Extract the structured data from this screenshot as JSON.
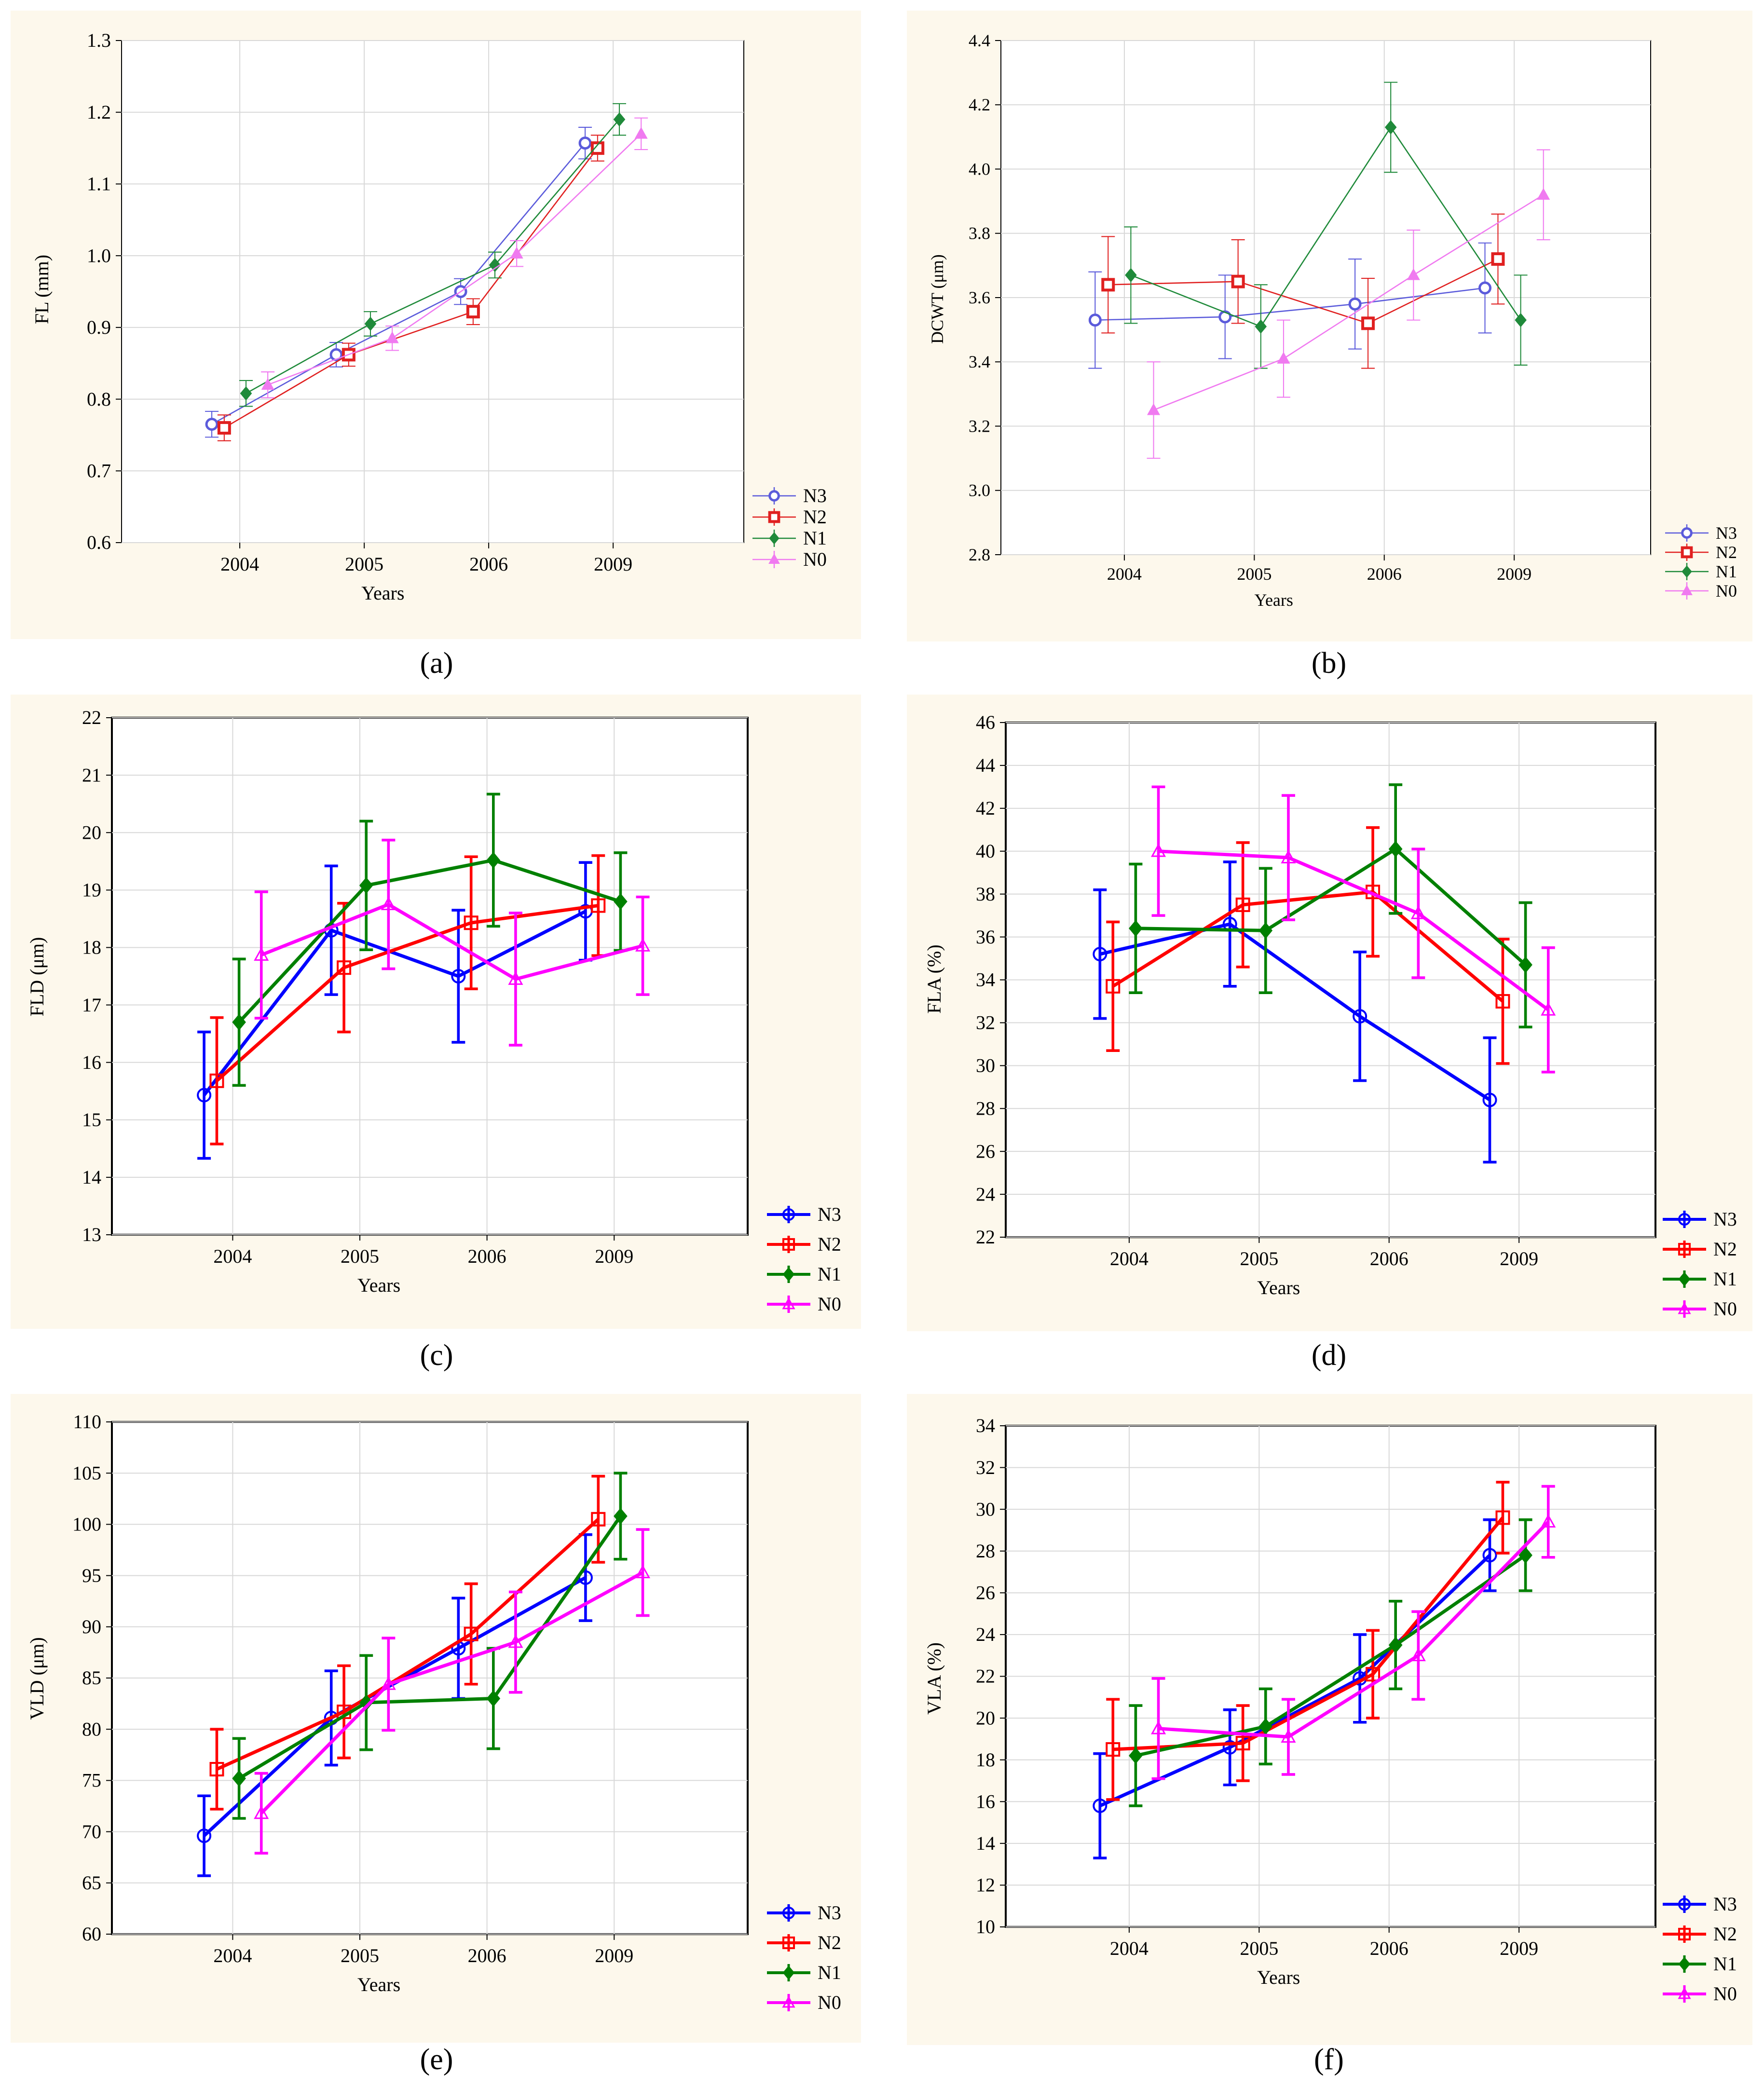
{
  "figure": {
    "x_label_common": "Years",
    "legend_entries": [
      "N3",
      "N2",
      "N1",
      "N0"
    ],
    "colors": {
      "light": {
        "N3": "#5b5bdb",
        "N2": "#e02020",
        "N1": "#1f8a3a",
        "N0": "#f07af0",
        "bg": "#fdf8ec"
      },
      "bold": {
        "N3": "#0000ff",
        "N2": "#ff0000",
        "N1": "#008000",
        "N0": "#ff00ff",
        "bg": "#fdf8ec"
      }
    }
  },
  "chart_data": [
    {
      "id": "a",
      "caption": "(a)",
      "type": "line",
      "title": "",
      "xlabel": "Years",
      "ylabel": "FL (mm)",
      "categories": [
        "2004",
        "2005",
        "2006",
        "2009"
      ],
      "ylim": [
        0.6,
        1.3
      ],
      "yticks": [
        "0.6",
        "0.7",
        "0.8",
        "0.9",
        "1.0",
        "1.1",
        "1.2",
        "1.3"
      ],
      "grid": true,
      "legend": "bottom-right",
      "style": "light",
      "series": [
        {
          "name": "N3",
          "values": [
            0.765,
            0.862,
            0.95,
            1.157
          ],
          "errors": [
            0.018,
            0.017,
            0.018,
            0.022
          ]
        },
        {
          "name": "N2",
          "values": [
            0.76,
            0.862,
            0.922,
            1.15
          ],
          "errors": [
            0.018,
            0.016,
            0.018,
            0.018
          ]
        },
        {
          "name": "N1",
          "values": [
            0.808,
            0.905,
            0.987,
            1.19
          ],
          "errors": [
            0.018,
            0.017,
            0.018,
            0.022
          ]
        },
        {
          "name": "N0",
          "values": [
            0.82,
            0.885,
            1.003,
            1.17
          ],
          "errors": [
            0.018,
            0.017,
            0.018,
            0.022
          ]
        }
      ]
    },
    {
      "id": "b",
      "caption": "(b)",
      "type": "line",
      "title": "",
      "xlabel": "Years",
      "ylabel": "DCWT (μm)",
      "categories": [
        "2004",
        "2005",
        "2006",
        "2009"
      ],
      "ylim": [
        2.8,
        4.4
      ],
      "yticks": [
        "2.8",
        "3.0",
        "3.2",
        "3.4",
        "3.6",
        "3.8",
        "4.0",
        "4.2",
        "4.4"
      ],
      "grid": true,
      "legend": "bottom-right",
      "style": "light",
      "series": [
        {
          "name": "N3",
          "values": [
            3.53,
            3.54,
            3.58,
            3.63
          ],
          "errors": [
            0.15,
            0.13,
            0.14,
            0.14
          ]
        },
        {
          "name": "N2",
          "values": [
            3.64,
            3.65,
            3.52,
            3.72
          ],
          "errors": [
            0.15,
            0.13,
            0.14,
            0.14
          ]
        },
        {
          "name": "N1",
          "values": [
            3.67,
            3.51,
            4.13,
            3.53
          ],
          "errors": [
            0.15,
            0.13,
            0.14,
            0.14
          ]
        },
        {
          "name": "N0",
          "values": [
            3.25,
            3.41,
            3.67,
            3.92
          ],
          "errors": [
            0.15,
            0.12,
            0.14,
            0.14
          ]
        }
      ]
    },
    {
      "id": "c",
      "caption": "(c)",
      "type": "line",
      "title": "",
      "xlabel": "Years",
      "ylabel": "FLD (μm)",
      "categories": [
        "2004",
        "2005",
        "2006",
        "2009"
      ],
      "ylim": [
        13,
        22
      ],
      "yticks": [
        "13",
        "14",
        "15",
        "16",
        "17",
        "18",
        "19",
        "20",
        "21",
        "22"
      ],
      "grid": true,
      "legend": "bottom-right",
      "style": "bold",
      "series": [
        {
          "name": "N3",
          "values": [
            15.43,
            18.3,
            17.5,
            18.63
          ],
          "errors": [
            1.1,
            1.12,
            1.15,
            0.85
          ]
        },
        {
          "name": "N2",
          "values": [
            15.68,
            17.65,
            18.43,
            18.73
          ],
          "errors": [
            1.1,
            1.12,
            1.15,
            0.87
          ]
        },
        {
          "name": "N1",
          "values": [
            16.7,
            19.08,
            19.52,
            18.8
          ],
          "errors": [
            1.1,
            1.12,
            1.15,
            0.85
          ]
        },
        {
          "name": "N0",
          "values": [
            17.87,
            18.75,
            17.45,
            18.03
          ],
          "errors": [
            1.1,
            1.12,
            1.15,
            0.85
          ]
        }
      ]
    },
    {
      "id": "d",
      "caption": "(d)",
      "type": "line",
      "title": "",
      "xlabel": "Years",
      "ylabel": "FLA (%)",
      "categories": [
        "2004",
        "2005",
        "2006",
        "2009"
      ],
      "ylim": [
        22,
        46
      ],
      "yticks": [
        "22",
        "24",
        "26",
        "28",
        "30",
        "32",
        "34",
        "36",
        "38",
        "40",
        "42",
        "44",
        "46"
      ],
      "grid": true,
      "legend": "bottom-right",
      "style": "bold",
      "series": [
        {
          "name": "N3",
          "values": [
            35.2,
            36.6,
            32.3,
            28.4
          ],
          "errors": [
            3.0,
            2.9,
            3.0,
            2.9
          ]
        },
        {
          "name": "N2",
          "values": [
            33.7,
            37.5,
            38.1,
            33.0
          ],
          "errors": [
            3.0,
            2.9,
            3.0,
            2.9
          ]
        },
        {
          "name": "N1",
          "values": [
            36.4,
            36.3,
            40.1,
            34.7
          ],
          "errors": [
            3.0,
            2.9,
            3.0,
            2.9
          ]
        },
        {
          "name": "N0",
          "values": [
            40.0,
            39.7,
            37.1,
            32.6
          ],
          "errors": [
            3.0,
            2.9,
            3.0,
            2.9
          ]
        }
      ]
    },
    {
      "id": "e",
      "caption": "(e)",
      "type": "line",
      "title": "",
      "xlabel": "Years",
      "ylabel": "VLD (μm)",
      "categories": [
        "2004",
        "2005",
        "2006",
        "2009"
      ],
      "ylim": [
        60,
        110
      ],
      "yticks": [
        "60",
        "65",
        "70",
        "75",
        "80",
        "85",
        "90",
        "95",
        "100",
        "105",
        "110"
      ],
      "grid": true,
      "legend": "bottom-right",
      "style": "bold",
      "series": [
        {
          "name": "N3",
          "values": [
            69.6,
            81.1,
            87.9,
            94.8
          ],
          "errors": [
            3.9,
            4.6,
            4.9,
            4.2
          ]
        },
        {
          "name": "N2",
          "values": [
            76.1,
            81.7,
            89.3,
            100.5
          ],
          "errors": [
            3.9,
            4.5,
            4.9,
            4.2
          ]
        },
        {
          "name": "N1",
          "values": [
            75.2,
            82.6,
            83.0,
            100.8
          ],
          "errors": [
            3.9,
            4.6,
            4.9,
            4.2
          ]
        },
        {
          "name": "N0",
          "values": [
            71.8,
            84.4,
            88.5,
            95.3
          ],
          "errors": [
            3.9,
            4.5,
            4.9,
            4.2
          ]
        }
      ]
    },
    {
      "id": "f",
      "caption": "(f)",
      "type": "line",
      "title": "",
      "xlabel": "Years",
      "ylabel": "VLA (%)",
      "categories": [
        "2004",
        "2005",
        "2006",
        "2009"
      ],
      "ylim": [
        10,
        34
      ],
      "yticks": [
        "10",
        "12",
        "14",
        "16",
        "18",
        "20",
        "22",
        "24",
        "26",
        "28",
        "30",
        "32",
        "34"
      ],
      "grid": true,
      "legend": "bottom-right",
      "style": "bold",
      "series": [
        {
          "name": "N3",
          "values": [
            15.8,
            18.6,
            21.9,
            27.8
          ],
          "errors": [
            2.5,
            1.8,
            2.1,
            1.7
          ]
        },
        {
          "name": "N2",
          "values": [
            18.5,
            18.8,
            22.1,
            29.6
          ],
          "errors": [
            2.4,
            1.8,
            2.1,
            1.7
          ]
        },
        {
          "name": "N1",
          "values": [
            18.2,
            19.6,
            23.5,
            27.8
          ],
          "errors": [
            2.4,
            1.8,
            2.1,
            1.7
          ]
        },
        {
          "name": "N0",
          "values": [
            19.5,
            19.1,
            23.0,
            29.4
          ],
          "errors": [
            2.4,
            1.8,
            2.1,
            1.7
          ]
        }
      ]
    }
  ]
}
